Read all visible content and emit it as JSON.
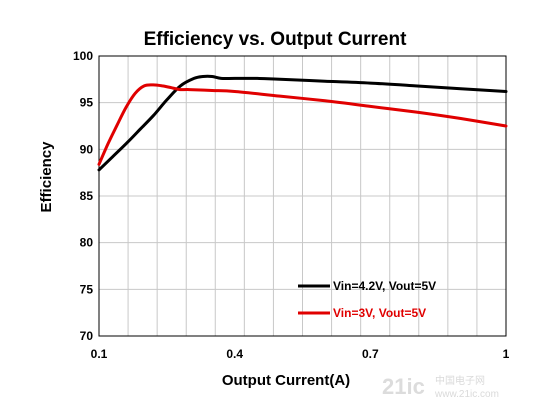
{
  "chart_data": {
    "type": "line",
    "title": "Efficiency vs. Output Current",
    "xlabel": "Output Current(A)",
    "ylabel": "Efficiency",
    "xlim": [
      0.1,
      1.0
    ],
    "ylim": [
      70,
      100
    ],
    "xticks": [
      0.1,
      0.4,
      0.7,
      1.0
    ],
    "xtick_labels": [
      "0.1",
      "0.4",
      "0.7",
      "1"
    ],
    "xgrid": [
      0.1,
      0.1643,
      0.2286,
      0.2929,
      0.3571,
      0.4214,
      0.4857,
      0.55,
      0.6143,
      0.6786,
      0.7429,
      0.8071,
      0.8714,
      0.9357,
      1.0
    ],
    "yticks": [
      70,
      75,
      80,
      85,
      90,
      95,
      100
    ],
    "ytick_labels": [
      "70",
      "75",
      "80",
      "85",
      "90",
      "95",
      "100"
    ],
    "grid": true,
    "legend_position": "bottom-right",
    "series": [
      {
        "name": "Vin=4.2V, Vout=5V",
        "color": "#000000",
        "x": [
          0.1,
          0.13,
          0.16,
          0.19,
          0.22,
          0.25,
          0.28,
          0.31,
          0.33,
          0.35,
          0.37,
          0.4,
          0.45,
          0.5,
          0.6,
          0.7,
          0.8,
          0.9,
          1.0
        ],
        "y": [
          87.8,
          89.2,
          90.6,
          92.1,
          93.6,
          95.3,
          96.8,
          97.6,
          97.8,
          97.8,
          97.6,
          97.6,
          97.6,
          97.5,
          97.3,
          97.1,
          96.8,
          96.5,
          96.2
        ]
      },
      {
        "name": "Vin=3V, Vout=5V",
        "color": "#e00000",
        "x": [
          0.1,
          0.12,
          0.14,
          0.16,
          0.18,
          0.2,
          0.22,
          0.24,
          0.26,
          0.28,
          0.3,
          0.35,
          0.4,
          0.5,
          0.6,
          0.7,
          0.8,
          0.9,
          1.0
        ],
        "y": [
          88.4,
          90.6,
          92.6,
          94.5,
          96.0,
          96.8,
          96.9,
          96.8,
          96.6,
          96.4,
          96.4,
          96.3,
          96.2,
          95.7,
          95.2,
          94.6,
          94.0,
          93.3,
          92.5
        ]
      }
    ]
  },
  "watermark": {
    "text": "21ic",
    "sub": "中国电子网",
    "url": "www.21ic.com"
  }
}
